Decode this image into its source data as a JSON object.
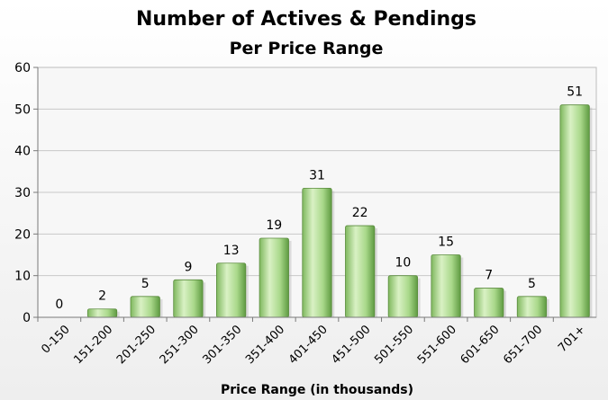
{
  "chart_data": {
    "type": "bar",
    "title": "Number of Actives & Pendings",
    "subtitle": "Per Price Range",
    "xlabel": "Price Range (in thousands)",
    "ylabel": "",
    "categories": [
      "0-150",
      "151-200",
      "201-250",
      "251-300",
      "301-350",
      "351-400",
      "401-450",
      "451-500",
      "501-550",
      "551-600",
      "601-650",
      "651-700",
      "701+"
    ],
    "values": [
      0,
      2,
      5,
      9,
      13,
      19,
      31,
      22,
      10,
      15,
      7,
      5,
      51
    ],
    "ylim": [
      0,
      60
    ],
    "yticks": [
      0,
      10,
      20,
      30,
      40,
      50,
      60
    ],
    "grid": true,
    "legend": "none",
    "colors": {
      "bar_light": "#d8f0c0",
      "bar_mid": "#a9d88a",
      "bar_dark": "#6fa84f",
      "bar_edge": "#5b8c3e",
      "plot_bg": "#f6f6f6",
      "grid": "#c8c8c8"
    }
  }
}
